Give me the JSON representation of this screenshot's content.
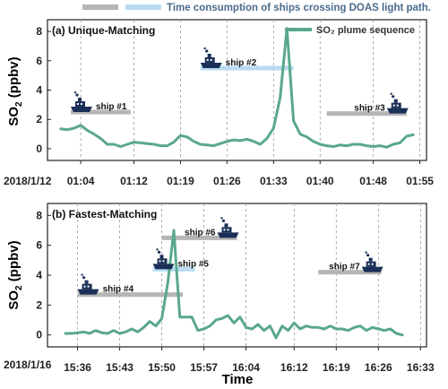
{
  "header_legend": {
    "text": "Time consumption of ships crossing DOAS light path.",
    "gray_color": "#b5b5b5",
    "blue_color": "#b8dcf2"
  },
  "colors": {
    "line": "#5aa88a",
    "ship": "#1b2f57",
    "gray_bar": "#b5b5b5",
    "blue_bar": "#b8dcf2",
    "grid": "#9a9a9a"
  },
  "shared_axes": {
    "ylabel": "SO₂ (ppbv)",
    "xlabel": "Time",
    "yticks": [
      "0",
      "2",
      "4",
      "6",
      "8"
    ],
    "ylim": [
      -0.8,
      8.8
    ]
  },
  "chart_data": [
    {
      "type": "line",
      "title": "(a) Unique-Matching",
      "legend": "SO₂ plume sequence",
      "date_label": "2018/1/12",
      "x_unit": "time",
      "xlim_minutes": [
        59,
        57,
        116
      ],
      "xticks": [
        "01:04",
        "01:12",
        "01:19",
        "01:26",
        "01:33",
        "01:40",
        "01:48",
        "01:55"
      ],
      "xtick_minutes": [
        64,
        72,
        79,
        86,
        93,
        100,
        108,
        115
      ],
      "series": [
        {
          "x_minutes": [
            61,
            62,
            63,
            64,
            65,
            66,
            67,
            68,
            69,
            70,
            71,
            72,
            73,
            74,
            75,
            76,
            77,
            78,
            79,
            80,
            81,
            82,
            83,
            84,
            85,
            86,
            87,
            88,
            89,
            90,
            91,
            92,
            93,
            94,
            95,
            96,
            97,
            98,
            99,
            100,
            101,
            102,
            103,
            104,
            105,
            106,
            107,
            108,
            109,
            110,
            111,
            112,
            113,
            114
          ],
          "values": [
            1.35,
            1.3,
            1.4,
            1.6,
            1.25,
            1.0,
            0.7,
            0.3,
            0.3,
            0.15,
            0.3,
            0.45,
            0.4,
            0.35,
            0.3,
            0.2,
            0.2,
            0.45,
            0.9,
            0.8,
            0.5,
            0.3,
            0.25,
            0.2,
            0.35,
            0.5,
            0.6,
            0.55,
            0.65,
            0.5,
            0.3,
            0.7,
            1.4,
            3.5,
            8.2,
            1.9,
            1.0,
            0.8,
            0.5,
            0.3,
            0.2,
            0.15,
            0.25,
            0.2,
            0.3,
            0.3,
            0.2,
            0.15,
            0.2,
            0.1,
            0.3,
            0.4,
            0.85,
            0.95
          ]
        }
      ],
      "ships": [
        {
          "label": "ship #1",
          "bar": "gray",
          "start": 62.5,
          "end": 71.5,
          "y": 2.5
        },
        {
          "label": "ship #2",
          "bar": "blue",
          "start": 82,
          "end": 96,
          "y": 5.5
        },
        {
          "label": "ship #3",
          "bar": "gray",
          "start": 101,
          "end": 113,
          "y": 2.4
        }
      ]
    },
    {
      "type": "line",
      "title": "(b) Fastest-Matching",
      "date_label": "2018/1/16",
      "x_unit": "time",
      "xlim_minutes": [
        933,
        931,
        994
      ],
      "xticks": [
        "15:36",
        "15:43",
        "15:50",
        "15:57",
        "16:04",
        "16:12",
        "16:19",
        "16:26",
        "16:33"
      ],
      "xtick_minutes": [
        936,
        943,
        950,
        957,
        964,
        972,
        979,
        986,
        993
      ],
      "series": [
        {
          "x_minutes": [
            934,
            935,
            936,
            937,
            938,
            939,
            940,
            941,
            942,
            943,
            944,
            945,
            946,
            947,
            948,
            949,
            950,
            951,
            952,
            953,
            954,
            955,
            956,
            957,
            958,
            959,
            960,
            961,
            962,
            963,
            964,
            965,
            966,
            967,
            968,
            969,
            970,
            971,
            972,
            973,
            974,
            975,
            976,
            977,
            978,
            979,
            980,
            981,
            982,
            983,
            984,
            985,
            986,
            987,
            988,
            989,
            990
          ],
          "values": [
            0.1,
            0.1,
            0.15,
            0.2,
            0.1,
            0.3,
            0.15,
            0.1,
            0.3,
            0.1,
            0.2,
            0.4,
            0.2,
            0.5,
            0.9,
            0.6,
            1.1,
            3.5,
            7.0,
            1.2,
            1.2,
            1.2,
            0.3,
            0.4,
            0.6,
            1.0,
            1.1,
            1.3,
            0.8,
            1.2,
            0.5,
            0.4,
            0.7,
            0.3,
            0.6,
            -0.2,
            0.6,
            0.3,
            0.8,
            0.4,
            0.6,
            0.5,
            0.5,
            0.4,
            0.6,
            0.4,
            0.4,
            0.3,
            0.5,
            0.6,
            0.3,
            0.5,
            0.4,
            0.3,
            0.4,
            0.1,
            0.0
          ]
        }
      ],
      "ships": [
        {
          "label": "ship #4",
          "bar": "gray",
          "start": 936,
          "end": 953.5,
          "y": 2.7
        },
        {
          "label": "ship #5",
          "bar": "blue",
          "start": 948.5,
          "end": 955.5,
          "y": 4.4
        },
        {
          "label": "ship #6",
          "bar": "gray",
          "start": 950,
          "end": 962.5,
          "y": 6.5
        },
        {
          "label": "ship #7",
          "bar": "gray",
          "start": 976,
          "end": 986.5,
          "y": 4.2
        }
      ]
    }
  ]
}
